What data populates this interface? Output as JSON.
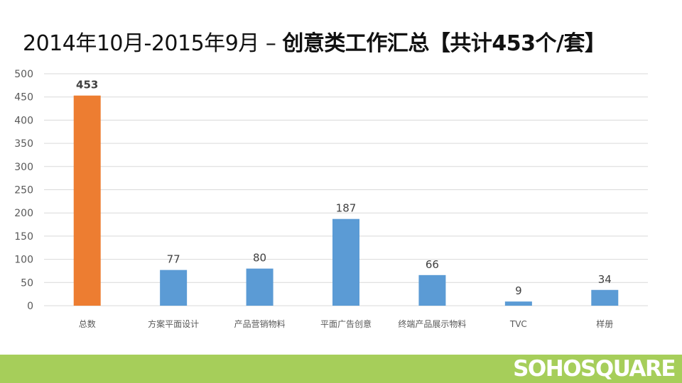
{
  "title": {
    "normal": "2014年10月-2015年9月 – ",
    "bold": "创意类工作汇总【共计453个/套】"
  },
  "brand": "SOHOSQUARE",
  "colors": {
    "highlight": "#ed7d31",
    "bar": "#5b9bd5",
    "grid": "#d9d9d9",
    "footer": "#a6ce5a"
  },
  "chart_data": {
    "type": "bar",
    "categories": [
      "总数",
      "方案平面设计",
      "产品营销物料",
      "平面广告创意",
      "终端产品展示物料",
      "TVC",
      "样册"
    ],
    "values": [
      453,
      77,
      80,
      187,
      66,
      9,
      34
    ],
    "highlight_index": 0,
    "ylim": [
      0,
      500
    ],
    "yticks": [
      0,
      50,
      100,
      150,
      200,
      250,
      300,
      350,
      400,
      450,
      500
    ],
    "grid": true,
    "legend": "none"
  }
}
